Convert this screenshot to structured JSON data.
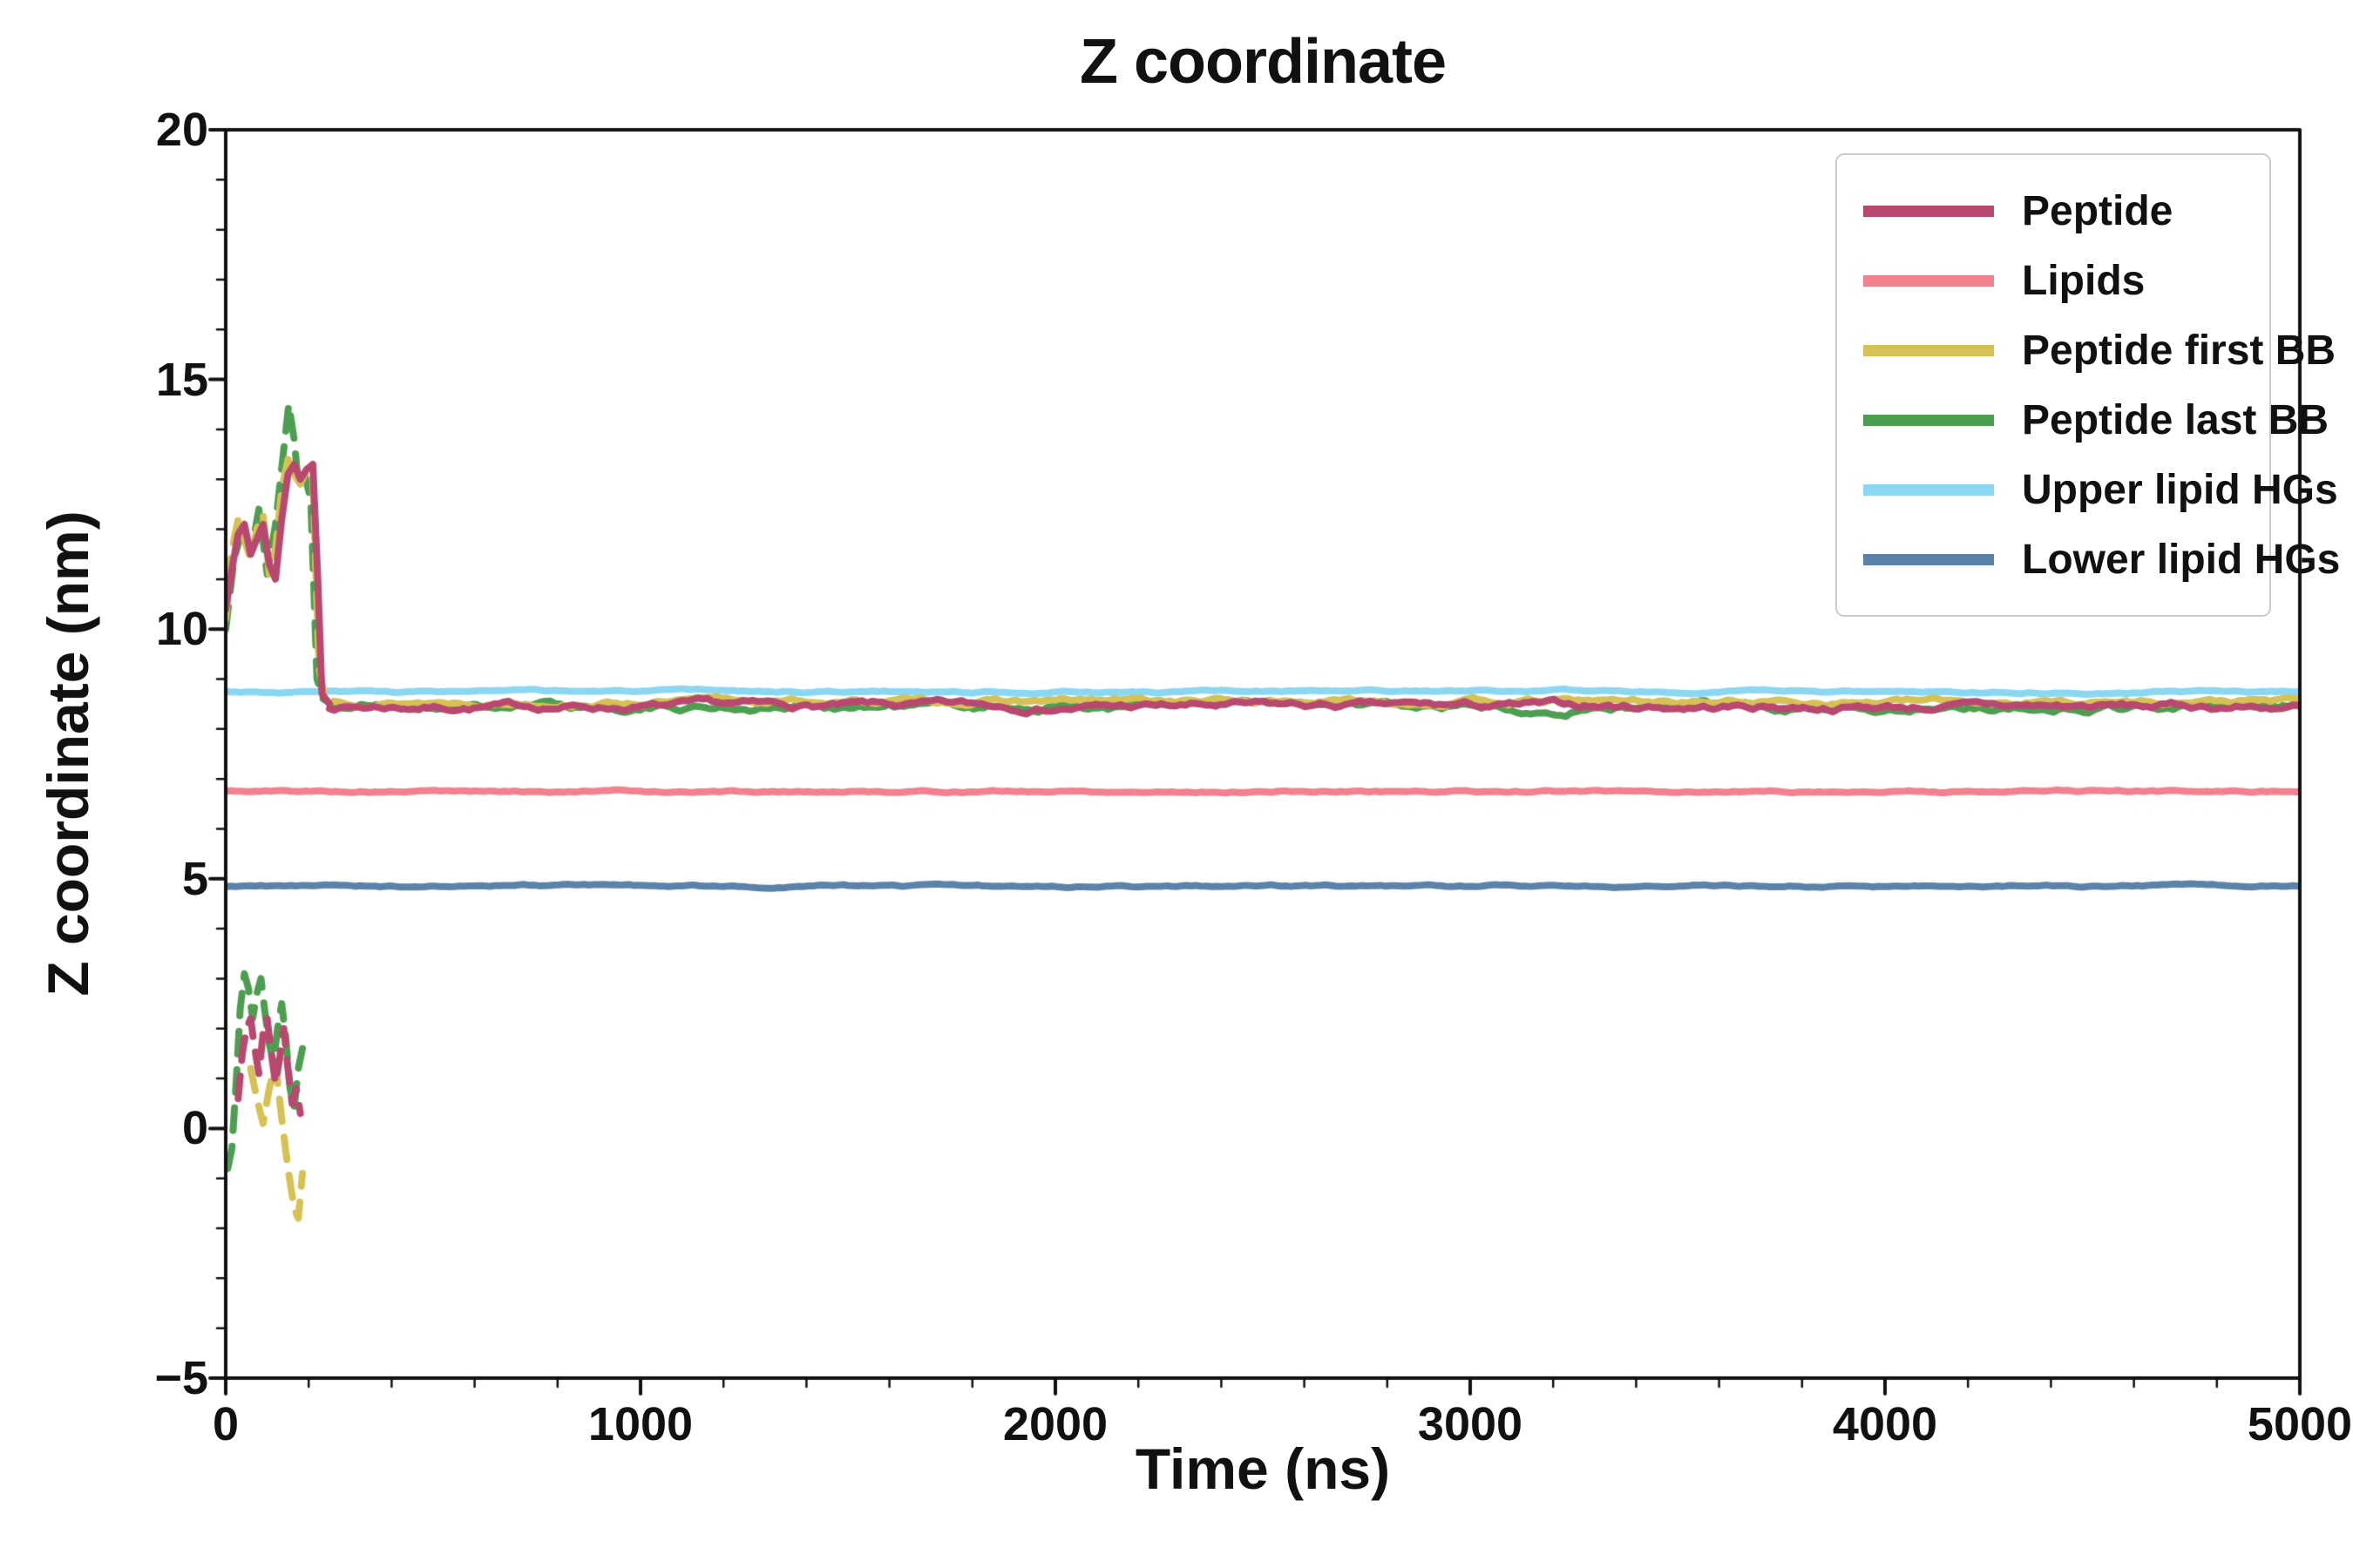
{
  "chart_data": {
    "type": "line",
    "title": "Z coordinate",
    "xlabel": "Time (ns)",
    "ylabel": "Z coordinate (nm)",
    "xlim": [
      0,
      5000
    ],
    "ylim": [
      -5,
      20
    ],
    "xticks": [
      0,
      1000,
      2000,
      3000,
      4000,
      5000
    ],
    "xtick_labels": [
      "0",
      "1000",
      "2000",
      "3000",
      "4000",
      "5000"
    ],
    "yticks": [
      -5,
      0,
      5,
      10,
      15,
      20
    ],
    "ytick_labels": [
      "−5",
      "0",
      "5",
      "10",
      "15",
      "20"
    ],
    "x_minor_step": 200,
    "y_minor_step": 1,
    "grid": false,
    "legend_position": "upper right",
    "axis_color": "#111111",
    "series": [
      {
        "name": "Peptide",
        "color": "#b8486f",
        "linewidth": 8,
        "segments": [
          {
            "style": "solid",
            "points": [
              [
                0,
                10.4
              ],
              [
                15,
                11.2
              ],
              [
                30,
                11.9
              ],
              [
                45,
                12.1
              ],
              [
                60,
                11.5
              ],
              [
                75,
                11.8
              ],
              [
                90,
                12.1
              ],
              [
                105,
                11.3
              ],
              [
                120,
                11.0
              ],
              [
                135,
                12.2
              ],
              [
                150,
                13.1
              ],
              [
                165,
                13.3
              ],
              [
                180,
                13.0
              ],
              [
                195,
                13.2
              ],
              [
                210,
                13.3
              ],
              [
                222,
                11.0
              ],
              [
                232,
                8.7
              ],
              [
                250,
                8.5
              ]
            ]
          },
          {
            "style": "dashed",
            "points": [
              [
                30,
                0.6
              ],
              [
                40,
                1.5
              ],
              [
                50,
                2.0
              ],
              [
                60,
                2.2
              ],
              [
                70,
                1.6
              ],
              [
                80,
                1.1
              ],
              [
                90,
                1.9
              ],
              [
                100,
                2.2
              ],
              [
                110,
                1.5
              ],
              [
                120,
                0.9
              ],
              [
                130,
                1.4
              ],
              [
                140,
                2.0
              ],
              [
                150,
                1.2
              ],
              [
                160,
                0.5
              ],
              [
                170,
                0.8
              ],
              [
                180,
                0.3
              ]
            ]
          }
        ],
        "stable": {
          "from": 250,
          "to": 5000,
          "mean": 8.45,
          "amp": 0.1,
          "seed": 7
        }
      },
      {
        "name": "Lipids",
        "color": "#f2808f",
        "linewidth": 8,
        "segments": [],
        "stable": {
          "from": 0,
          "to": 5000,
          "mean": 6.75,
          "amp": 0.03,
          "seed": 5
        }
      },
      {
        "name": "Peptide first BB",
        "color": "#d6c155",
        "linewidth": 8,
        "segments": [
          {
            "style": "dashed",
            "points": [
              [
                0,
                10.2
              ],
              [
                15,
                11.6
              ],
              [
                30,
                12.2
              ],
              [
                45,
                11.8
              ],
              [
                60,
                11.4
              ],
              [
                75,
                12.0
              ],
              [
                90,
                12.3
              ],
              [
                105,
                11.1
              ],
              [
                120,
                11.6
              ],
              [
                135,
                12.8
              ],
              [
                150,
                13.4
              ],
              [
                165,
                13.1
              ],
              [
                180,
                12.9
              ],
              [
                195,
                13.2
              ],
              [
                210,
                13.0
              ],
              [
                225,
                9.2
              ],
              [
                240,
                8.6
              ],
              [
                260,
                8.55
              ]
            ]
          },
          {
            "style": "dashed",
            "points": [
              [
                60,
                1.2
              ],
              [
                75,
                0.6
              ],
              [
                90,
                0.1
              ],
              [
                105,
                0.8
              ],
              [
                120,
                1.3
              ],
              [
                135,
                0.2
              ],
              [
                150,
                -0.8
              ],
              [
                165,
                -1.6
              ],
              [
                175,
                -1.8
              ],
              [
                185,
                -0.9
              ]
            ]
          }
        ],
        "stable": {
          "from": 260,
          "to": 5000,
          "mean": 8.55,
          "amp": 0.08,
          "seed": 13
        }
      },
      {
        "name": "Peptide last BB",
        "color": "#4d9e50",
        "linewidth": 8,
        "segments": [
          {
            "style": "dashed",
            "points": [
              [
                0,
                10.0
              ],
              [
                20,
                11.4
              ],
              [
                40,
                12.0
              ],
              [
                60,
                11.5
              ],
              [
                80,
                12.4
              ],
              [
                100,
                11.1
              ],
              [
                120,
                12.1
              ],
              [
                140,
                13.6
              ],
              [
                152,
                14.5
              ],
              [
                165,
                13.8
              ],
              [
                175,
                12.9
              ],
              [
                190,
                13.1
              ],
              [
                205,
                12.6
              ],
              [
                220,
                9.0
              ],
              [
                235,
                8.6
              ],
              [
                255,
                8.5
              ]
            ]
          },
          {
            "style": "dashed",
            "points": [
              [
                5,
                -0.8
              ],
              [
                15,
                -0.4
              ],
              [
                25,
                0.9
              ],
              [
                35,
                2.4
              ],
              [
                45,
                3.1
              ],
              [
                55,
                2.8
              ],
              [
                65,
                2.2
              ],
              [
                75,
                2.7
              ],
              [
                85,
                3.0
              ],
              [
                95,
                2.3
              ],
              [
                105,
                1.7
              ],
              [
                115,
                1.3
              ],
              [
                125,
                2.0
              ],
              [
                135,
                2.5
              ],
              [
                145,
                1.8
              ],
              [
                155,
                0.8
              ],
              [
                165,
                0.4
              ],
              [
                175,
                1.2
              ],
              [
                185,
                1.6
              ]
            ]
          }
        ],
        "stable": {
          "from": 255,
          "to": 5000,
          "mean": 8.45,
          "amp": 0.11,
          "seed": 21
        }
      },
      {
        "name": "Upper lipid HGs",
        "color": "#8bd7f2",
        "linewidth": 8,
        "segments": [],
        "stable": {
          "from": 0,
          "to": 5000,
          "mean": 8.75,
          "amp": 0.03,
          "seed": 3
        }
      },
      {
        "name": "Lower lipid HGs",
        "color": "#5b83aa",
        "linewidth": 8,
        "segments": [],
        "stable": {
          "from": 0,
          "to": 5000,
          "mean": 4.85,
          "amp": 0.03,
          "seed": 9
        }
      }
    ]
  }
}
